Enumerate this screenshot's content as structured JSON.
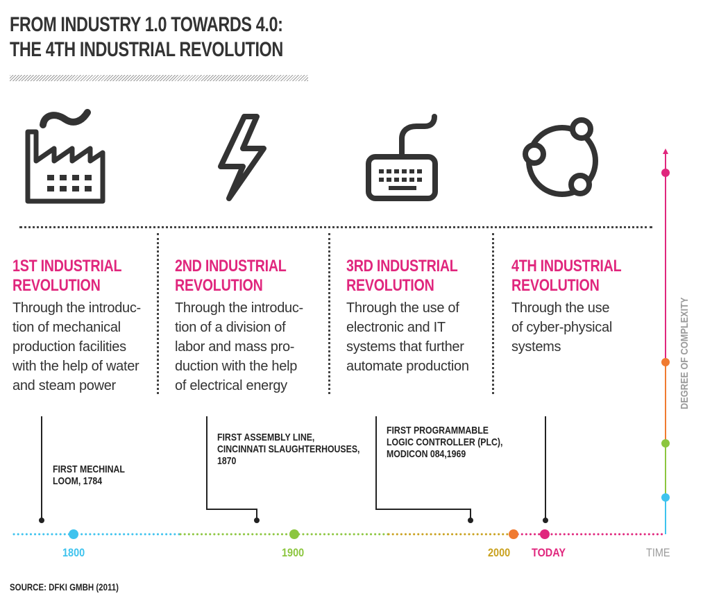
{
  "header": {
    "title_line1": "FROM INDUSTRY 1.0 TOWARDS 4.0:",
    "title_line2": "THE 4TH INDUSTRIAL REVOLUTION"
  },
  "icons": [
    "factory-icon",
    "lightning-icon",
    "keyboard-icon",
    "network-icon"
  ],
  "revolutions": [
    {
      "heading1": "1ST INDUSTRIAL",
      "heading2": "REVOLUTION",
      "lines": [
        "Through the introduc-",
        "tion of mechanical",
        "production facilities",
        "with the help of water",
        "and steam power"
      ]
    },
    {
      "heading1": "2ND INDUSTRIAL",
      "heading2": "REVOLUTION",
      "lines": [
        "Through the introduc-",
        "tion of a division of",
        "labor and mass pro-",
        "duction with the help",
        "of electrical energy"
      ]
    },
    {
      "heading1": "3RD INDUSTRIAL",
      "heading2": "REVOLUTION",
      "lines": [
        "Through the use of",
        "electronic and IT",
        "systems that further",
        "automate production"
      ]
    },
    {
      "heading1": "4TH INDUSTRIAL",
      "heading2": "REVOLUTION",
      "lines": [
        "Through the use",
        "of cyber-physical",
        "systems"
      ]
    }
  ],
  "events": [
    {
      "lines": [
        "FIRST MECHINAL",
        "LOOM, 1784"
      ]
    },
    {
      "lines": [
        "FIRST ASSEMBLY LINE,",
        "CINCINNATI SLAUGHTERHOUSES,",
        "1870"
      ]
    },
    {
      "lines": [
        "FIRST PROGRAMMABLE",
        "LOGIC CONTROLLER (PLC),",
        "MODICON 084,1969"
      ]
    }
  ],
  "timeline": {
    "labels": [
      "1800",
      "1900",
      "2000",
      "TODAY",
      "TIME"
    ],
    "axis_label": "DEGREE OF COMPLEXITY"
  },
  "source": "SOURCE: DFKI GMBH (2011)",
  "colors": {
    "pink": "#e0267d",
    "blue": "#3ec3ee",
    "green": "#8cc63f",
    "orange": "#f07a30",
    "olive": "#c9a11e",
    "dark": "#333333",
    "grey": "#9a9a9a"
  }
}
